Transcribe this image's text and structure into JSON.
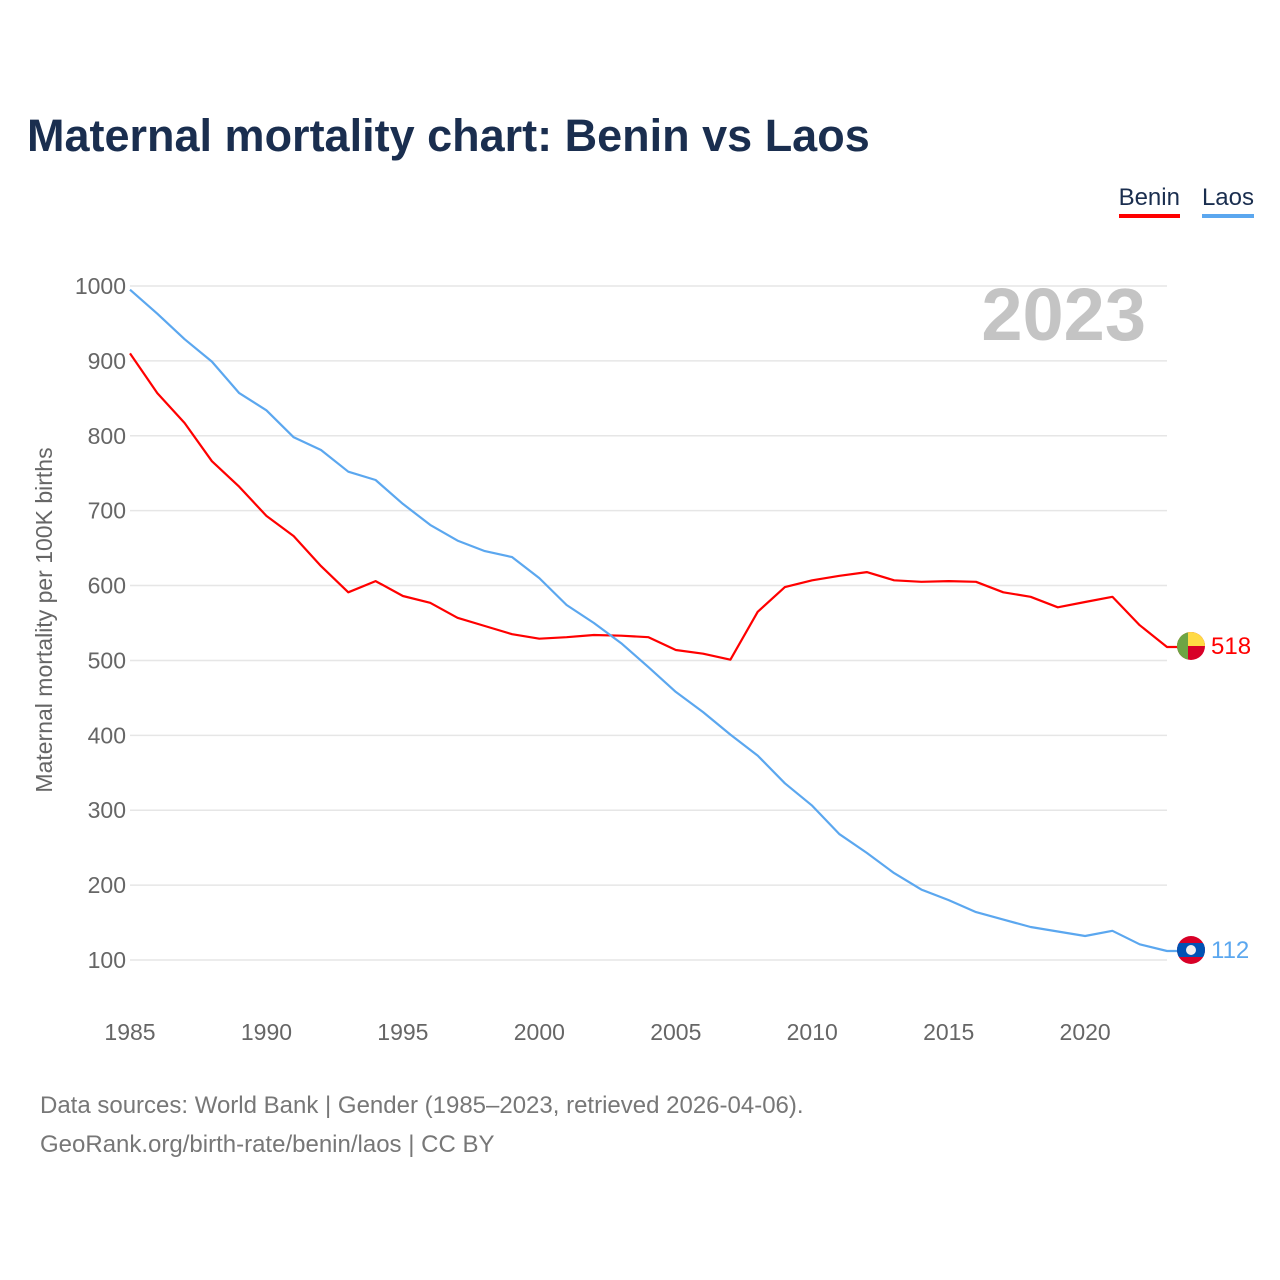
{
  "title": "Maternal mortality chart: Benin vs Laos",
  "footer": {
    "line1": "Data sources: World Bank | Gender (1985–2023, retrieved 2026-04-06).",
    "line2": "GeoRank.org/birth-rate/benin/laos | CC BY"
  },
  "chart_data": {
    "type": "line",
    "title": "Maternal mortality chart: Benin vs Laos",
    "ylabel": "Maternal mortality per 100K births",
    "xlabel": "",
    "year_watermark": "2023",
    "ylim": [
      0,
      1000
    ],
    "xlim": [
      1985,
      2023
    ],
    "yticks": [
      100,
      200,
      300,
      400,
      500,
      600,
      700,
      800,
      900,
      1000
    ],
    "xticks": [
      1985,
      1990,
      1995,
      2000,
      2005,
      2010,
      2015,
      2020
    ],
    "grid": true,
    "legend_position": "top-right",
    "x": [
      1985,
      1986,
      1987,
      1988,
      1989,
      1990,
      1991,
      1992,
      1993,
      1994,
      1995,
      1996,
      1997,
      1998,
      1999,
      2000,
      2001,
      2002,
      2003,
      2004,
      2005,
      2006,
      2007,
      2008,
      2009,
      2010,
      2011,
      2012,
      2013,
      2014,
      2015,
      2016,
      2017,
      2018,
      2019,
      2020,
      2021,
      2022,
      2023
    ],
    "series": [
      {
        "name": "Benin",
        "color": "#ff0000",
        "end_label": "518",
        "values": [
          910,
          857,
          817,
          766,
          732,
          693,
          666,
          626,
          591,
          606,
          586,
          577,
          557,
          546,
          535,
          529,
          531,
          534,
          533,
          531,
          514,
          509,
          501,
          565,
          598,
          607,
          613,
          618,
          607,
          605,
          606,
          605,
          591,
          585,
          571,
          578,
          585,
          547,
          518
        ]
      },
      {
        "name": "Laos",
        "color": "#5ba7ef",
        "end_label": "112",
        "values": [
          995,
          963,
          929,
          899,
          857,
          834,
          798,
          781,
          752,
          741,
          709,
          681,
          660,
          646,
          638,
          610,
          574,
          550,
          523,
          491,
          458,
          431,
          401,
          373,
          336,
          306,
          268,
          243,
          216,
          194,
          180,
          164,
          154,
          144,
          138,
          132,
          139,
          121,
          112
        ]
      }
    ]
  }
}
